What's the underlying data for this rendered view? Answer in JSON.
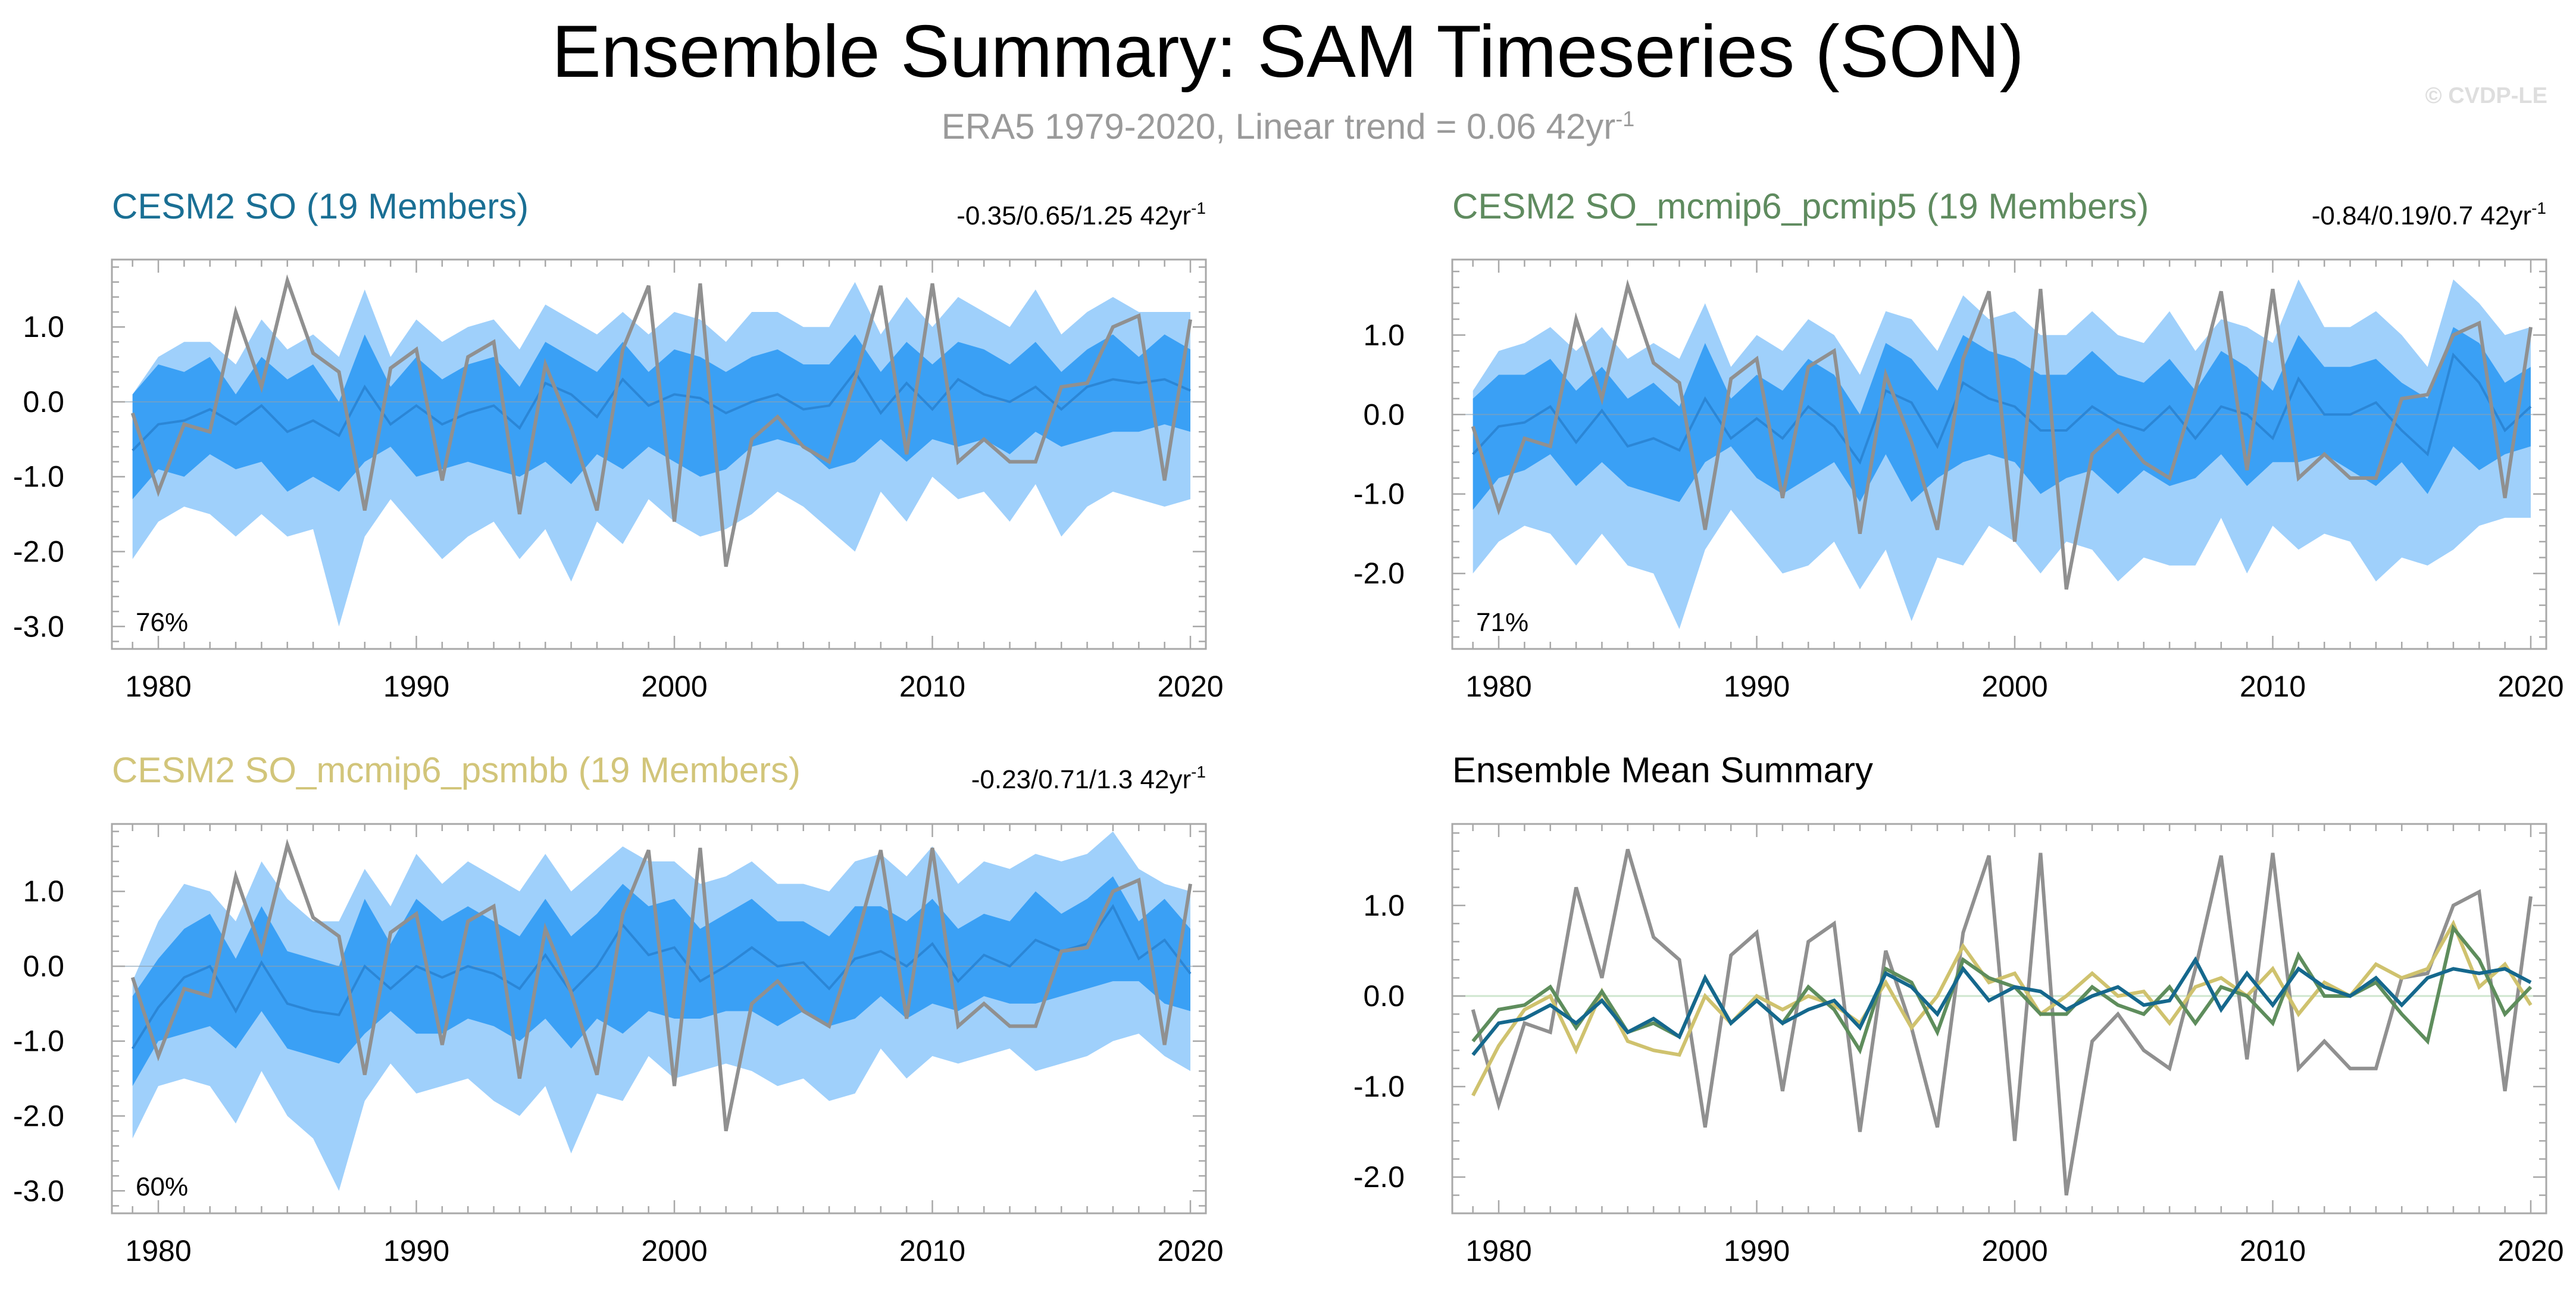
{
  "title": "Ensemble Summary: SAM Timeseries (SON)",
  "subtitle": {
    "text": "ERA5 1979-2020, Linear trend = 0.06 42yr",
    "exp": "-1"
  },
  "watermark": "© CVDP-LE",
  "colors": {
    "obs": "#909090",
    "band_outer": "#9fd0fb",
    "band_inner": "#3aa0f5",
    "mean_line": "#2b86d6",
    "zero_line": "#cfe6cf"
  },
  "chart_data": [
    {
      "type": "area",
      "id": "p1",
      "title": "CESM2 SO (19 Members)",
      "title_color": "#1a6f94",
      "trend": "-0.35/0.65/1.25 42yr",
      "trend_exp": "-1",
      "pct": "76%",
      "xlim": [
        1978.2,
        2020.6
      ],
      "ylim": [
        -3.3,
        1.9
      ],
      "xticks": [
        1980,
        1990,
        2000,
        2010,
        2020
      ],
      "yticks": [
        1.0,
        0.0,
        -1.0,
        -2.0,
        -3.0
      ],
      "yticklabels": [
        "1.0",
        "0.0",
        "-1.0",
        "-2.0",
        "-3.0"
      ],
      "x": [
        1979,
        1980,
        1981,
        1982,
        1983,
        1984,
        1985,
        1986,
        1987,
        1988,
        1989,
        1990,
        1991,
        1992,
        1993,
        1994,
        1995,
        1996,
        1997,
        1998,
        1999,
        2000,
        2001,
        2002,
        2003,
        2004,
        2005,
        2006,
        2007,
        2008,
        2009,
        2010,
        2011,
        2012,
        2013,
        2014,
        2015,
        2016,
        2017,
        2018,
        2019,
        2020
      ],
      "p10": [
        -2.1,
        -1.6,
        -1.4,
        -1.5,
        -1.8,
        -1.5,
        -1.8,
        -1.7,
        -3.0,
        -1.8,
        -1.3,
        -1.7,
        -2.1,
        -1.8,
        -1.6,
        -2.1,
        -1.7,
        -2.4,
        -1.6,
        -1.9,
        -1.3,
        -1.6,
        -1.8,
        -1.7,
        -1.5,
        -1.2,
        -1.4,
        -1.7,
        -2.0,
        -1.2,
        -1.6,
        -1.0,
        -1.3,
        -1.2,
        -1.6,
        -1.1,
        -1.8,
        -1.4,
        -1.2,
        -1.3,
        -1.4,
        -1.3
      ],
      "p25": [
        -1.3,
        -0.9,
        -1.0,
        -0.7,
        -0.9,
        -0.8,
        -1.2,
        -1.0,
        -1.2,
        -0.8,
        -0.6,
        -1.0,
        -0.9,
        -0.8,
        -0.9,
        -1.0,
        -0.8,
        -1.1,
        -0.7,
        -0.9,
        -0.6,
        -0.8,
        -1.0,
        -0.9,
        -0.6,
        -0.5,
        -0.6,
        -0.9,
        -0.8,
        -0.5,
        -0.8,
        -0.5,
        -0.6,
        -0.5,
        -0.7,
        -0.4,
        -0.6,
        -0.5,
        -0.4,
        -0.4,
        -0.3,
        -0.4
      ],
      "mean": [
        -0.65,
        -0.3,
        -0.25,
        -0.1,
        -0.3,
        -0.05,
        -0.4,
        -0.25,
        -0.45,
        0.2,
        -0.3,
        -0.05,
        -0.3,
        -0.15,
        -0.05,
        -0.35,
        0.25,
        0.1,
        -0.2,
        0.3,
        -0.05,
        0.1,
        0.05,
        -0.15,
        0.0,
        0.1,
        -0.1,
        -0.05,
        0.4,
        -0.15,
        0.25,
        -0.1,
        0.3,
        0.1,
        0.0,
        0.2,
        -0.1,
        0.2,
        0.3,
        0.25,
        0.3,
        0.15
      ],
      "p75": [
        0.1,
        0.5,
        0.4,
        0.6,
        0.1,
        0.6,
        0.3,
        0.5,
        0.0,
        0.9,
        0.2,
        0.6,
        0.3,
        0.5,
        0.6,
        0.2,
        0.8,
        0.6,
        0.4,
        0.8,
        0.4,
        0.7,
        0.6,
        0.4,
        0.6,
        0.7,
        0.5,
        0.5,
        0.9,
        0.4,
        0.8,
        0.5,
        0.8,
        0.7,
        0.5,
        0.8,
        0.4,
        0.7,
        0.9,
        0.6,
        0.9,
        0.7
      ],
      "p90": [
        0.1,
        0.6,
        0.8,
        0.8,
        0.5,
        1.1,
        0.7,
        0.9,
        0.6,
        1.5,
        0.6,
        1.1,
        0.8,
        1.0,
        1.1,
        0.7,
        1.3,
        1.1,
        0.9,
        1.2,
        0.9,
        1.2,
        1.1,
        0.8,
        1.2,
        1.2,
        1.0,
        1.0,
        1.6,
        0.9,
        1.4,
        1.0,
        1.4,
        1.2,
        1.0,
        1.5,
        0.9,
        1.2,
        1.4,
        1.2,
        1.2,
        1.2
      ],
      "obs": [
        -0.15,
        -1.2,
        -0.3,
        -0.4,
        1.2,
        0.2,
        1.62,
        0.65,
        0.4,
        -1.45,
        0.45,
        0.7,
        -1.05,
        0.6,
        0.8,
        -1.5,
        0.5,
        -0.35,
        -1.45,
        0.7,
        1.55,
        -1.6,
        1.58,
        -2.2,
        -0.5,
        -0.2,
        -0.6,
        -0.8,
        0.3,
        1.55,
        -0.7,
        1.58,
        -0.8,
        -0.5,
        -0.8,
        -0.8,
        0.2,
        0.25,
        1.0,
        1.15,
        -1.05,
        1.1
      ]
    },
    {
      "type": "area",
      "id": "p2",
      "title": "CESM2 SO_mcmip6_pcmip5 (19 Members)",
      "title_color": "#5f8b5f",
      "trend": "-0.84/0.19/0.7 42yr",
      "trend_exp": "-1",
      "pct": "71%",
      "xlim": [
        1978.2,
        2020.6
      ],
      "ylim": [
        -2.95,
        1.95
      ],
      "xticks": [
        1980,
        1990,
        2000,
        2010,
        2020
      ],
      "yticks": [
        1.0,
        0.0,
        -1.0,
        -2.0
      ],
      "yticklabels": [
        "1.0",
        "0.0",
        "-1.0",
        "-2.0"
      ],
      "x": [
        1979,
        1980,
        1981,
        1982,
        1983,
        1984,
        1985,
        1986,
        1987,
        1988,
        1989,
        1990,
        1991,
        1992,
        1993,
        1994,
        1995,
        1996,
        1997,
        1998,
        1999,
        2000,
        2001,
        2002,
        2003,
        2004,
        2005,
        2006,
        2007,
        2008,
        2009,
        2010,
        2011,
        2012,
        2013,
        2014,
        2015,
        2016,
        2017,
        2018,
        2019,
        2020
      ],
      "p10": [
        -2.0,
        -1.6,
        -1.4,
        -1.5,
        -1.9,
        -1.5,
        -1.9,
        -2.0,
        -2.7,
        -1.7,
        -1.2,
        -1.6,
        -2.0,
        -1.9,
        -1.6,
        -2.2,
        -1.7,
        -2.6,
        -1.8,
        -1.9,
        -1.4,
        -1.6,
        -2.0,
        -1.6,
        -1.7,
        -2.1,
        -1.8,
        -1.9,
        -1.9,
        -1.3,
        -2.0,
        -1.4,
        -1.7,
        -1.5,
        -1.6,
        -2.1,
        -1.8,
        -1.9,
        -1.7,
        -1.4,
        -1.3,
        -1.3
      ],
      "p25": [
        -1.2,
        -0.8,
        -0.7,
        -0.5,
        -0.9,
        -0.6,
        -0.9,
        -1.0,
        -1.1,
        -0.6,
        -0.4,
        -0.8,
        -1.0,
        -0.8,
        -0.6,
        -1.1,
        -0.5,
        -1.1,
        -0.8,
        -0.6,
        -0.5,
        -0.6,
        -1.0,
        -0.8,
        -0.7,
        -1.0,
        -0.7,
        -0.9,
        -0.8,
        -0.5,
        -0.9,
        -0.6,
        -0.6,
        -0.5,
        -0.7,
        -0.9,
        -0.6,
        -1.0,
        -0.4,
        -0.7,
        -0.5,
        -0.4
      ],
      "mean": [
        -0.5,
        -0.15,
        -0.1,
        0.1,
        -0.35,
        0.05,
        -0.4,
        -0.3,
        -0.45,
        0.2,
        -0.3,
        -0.05,
        -0.3,
        0.1,
        -0.15,
        -0.6,
        0.3,
        0.15,
        -0.4,
        0.4,
        0.2,
        0.1,
        -0.2,
        -0.2,
        0.1,
        -0.1,
        -0.2,
        0.1,
        -0.3,
        0.1,
        0.0,
        -0.3,
        0.45,
        0.0,
        0.0,
        0.15,
        -0.2,
        -0.5,
        0.75,
        0.4,
        -0.2,
        0.1
      ],
      "p75": [
        0.2,
        0.5,
        0.5,
        0.7,
        0.3,
        0.6,
        0.2,
        0.4,
        0.1,
        0.9,
        0.2,
        0.5,
        0.3,
        0.7,
        0.5,
        0.0,
        0.9,
        0.7,
        0.3,
        1.0,
        0.8,
        0.7,
        0.5,
        0.5,
        0.8,
        0.5,
        0.4,
        0.7,
        0.3,
        0.8,
        0.6,
        0.3,
        1.0,
        0.6,
        0.6,
        0.7,
        0.4,
        0.2,
        1.1,
        0.9,
        0.4,
        0.6
      ],
      "p90": [
        0.3,
        0.8,
        0.9,
        1.1,
        0.8,
        1.1,
        0.7,
        0.9,
        0.7,
        1.4,
        0.6,
        1.0,
        0.8,
        1.2,
        1.0,
        0.5,
        1.3,
        1.2,
        0.8,
        1.5,
        1.2,
        1.3,
        1.0,
        1.0,
        1.3,
        1.0,
        0.9,
        1.3,
        0.8,
        1.2,
        1.1,
        0.9,
        1.7,
        1.1,
        1.1,
        1.3,
        1.0,
        0.6,
        1.7,
        1.4,
        1.0,
        1.1
      ],
      "obs": [
        -0.15,
        -1.2,
        -0.3,
        -0.4,
        1.2,
        0.2,
        1.62,
        0.65,
        0.4,
        -1.45,
        0.45,
        0.7,
        -1.05,
        0.6,
        0.8,
        -1.5,
        0.5,
        -0.35,
        -1.45,
        0.7,
        1.55,
        -1.6,
        1.58,
        -2.2,
        -0.5,
        -0.2,
        -0.6,
        -0.8,
        0.3,
        1.55,
        -0.7,
        1.58,
        -0.8,
        -0.5,
        -0.8,
        -0.8,
        0.2,
        0.25,
        1.0,
        1.15,
        -1.05,
        1.1
      ]
    },
    {
      "type": "area",
      "id": "p3",
      "title": "CESM2 SO_mcmip6_psmbb (19 Members)",
      "title_color": "#d2c57a",
      "trend": "-0.23/0.71/1.3 42yr",
      "trend_exp": "-1",
      "pct": "60%",
      "xlim": [
        1978.2,
        2020.6
      ],
      "ylim": [
        -3.3,
        1.9
      ],
      "xticks": [
        1980,
        1990,
        2000,
        2010,
        2020
      ],
      "yticks": [
        1.0,
        0.0,
        -1.0,
        -2.0,
        -3.0
      ],
      "yticklabels": [
        "1.0",
        "0.0",
        "-1.0",
        "-2.0",
        "-3.0"
      ],
      "x": [
        1979,
        1980,
        1981,
        1982,
        1983,
        1984,
        1985,
        1986,
        1987,
        1988,
        1989,
        1990,
        1991,
        1992,
        1993,
        1994,
        1995,
        1996,
        1997,
        1998,
        1999,
        2000,
        2001,
        2002,
        2003,
        2004,
        2005,
        2006,
        2007,
        2008,
        2009,
        2010,
        2011,
        2012,
        2013,
        2014,
        2015,
        2016,
        2017,
        2018,
        2019,
        2020
      ],
      "p10": [
        -2.3,
        -1.6,
        -1.5,
        -1.6,
        -2.1,
        -1.4,
        -2.0,
        -2.3,
        -3.0,
        -1.8,
        -1.3,
        -1.7,
        -1.6,
        -1.5,
        -1.8,
        -2.0,
        -1.6,
        -2.5,
        -1.7,
        -1.8,
        -1.2,
        -1.5,
        -1.4,
        -1.3,
        -1.4,
        -1.6,
        -1.5,
        -1.8,
        -1.7,
        -1.1,
        -1.5,
        -1.2,
        -1.3,
        -1.2,
        -1.1,
        -1.4,
        -1.3,
        -1.2,
        -1.0,
        -0.9,
        -1.2,
        -1.4
      ],
      "p25": [
        -1.6,
        -1.0,
        -0.9,
        -0.8,
        -1.1,
        -0.6,
        -1.1,
        -1.2,
        -1.3,
        -0.9,
        -0.6,
        -0.9,
        -0.9,
        -0.7,
        -0.8,
        -1.0,
        -0.7,
        -1.1,
        -0.7,
        -0.9,
        -0.6,
        -0.7,
        -0.7,
        -0.6,
        -0.6,
        -0.8,
        -0.6,
        -0.8,
        -0.7,
        -0.4,
        -0.7,
        -0.5,
        -0.6,
        -0.4,
        -0.5,
        -0.5,
        -0.4,
        -0.3,
        -0.2,
        -0.2,
        -0.5,
        -0.6
      ],
      "mean": [
        -1.1,
        -0.55,
        -0.15,
        0.0,
        -0.6,
        0.05,
        -0.5,
        -0.6,
        -0.65,
        0.0,
        -0.3,
        0.0,
        -0.15,
        0.0,
        -0.1,
        -0.3,
        0.15,
        -0.35,
        0.0,
        0.55,
        0.15,
        0.25,
        -0.2,
        0.0,
        0.25,
        0.0,
        0.05,
        -0.3,
        0.1,
        0.2,
        0.0,
        0.3,
        -0.2,
        0.15,
        0.0,
        0.35,
        0.2,
        0.3,
        0.8,
        0.1,
        0.35,
        -0.1
      ],
      "p75": [
        -0.4,
        0.1,
        0.5,
        0.7,
        0.1,
        0.8,
        0.2,
        0.1,
        0.0,
        0.9,
        0.3,
        0.9,
        0.6,
        0.8,
        0.6,
        0.4,
        0.9,
        0.4,
        0.7,
        1.1,
        0.8,
        0.9,
        0.5,
        0.7,
        0.9,
        0.6,
        0.6,
        0.4,
        0.8,
        0.8,
        0.6,
        0.9,
        0.5,
        0.7,
        0.6,
        1.0,
        0.7,
        0.9,
        1.2,
        0.6,
        0.9,
        0.5
      ],
      "p90": [
        -0.2,
        0.6,
        1.1,
        1.0,
        0.6,
        1.4,
        0.9,
        0.6,
        0.6,
        1.3,
        0.8,
        1.5,
        1.1,
        1.4,
        1.2,
        1.0,
        1.5,
        1.0,
        1.3,
        1.6,
        1.4,
        1.4,
        1.1,
        1.2,
        1.4,
        1.1,
        1.1,
        1.0,
        1.4,
        1.5,
        1.2,
        1.6,
        1.1,
        1.4,
        1.3,
        1.5,
        1.4,
        1.5,
        1.8,
        1.3,
        1.1,
        1.0
      ],
      "obs": [
        -0.15,
        -1.2,
        -0.3,
        -0.4,
        1.2,
        0.2,
        1.62,
        0.65,
        0.4,
        -1.45,
        0.45,
        0.7,
        -1.05,
        0.6,
        0.8,
        -1.5,
        0.5,
        -0.35,
        -1.45,
        0.7,
        1.55,
        -1.6,
        1.58,
        -2.2,
        -0.5,
        -0.2,
        -0.6,
        -0.8,
        0.3,
        1.55,
        -0.7,
        1.58,
        -0.8,
        -0.5,
        -0.8,
        -0.8,
        0.2,
        0.25,
        1.0,
        1.15,
        -1.05,
        1.1
      ]
    },
    {
      "type": "line",
      "id": "p4",
      "title": "Ensemble Mean Summary",
      "title_color": "#000000",
      "xlim": [
        1978.2,
        2020.6
      ],
      "ylim": [
        -2.4,
        1.9
      ],
      "xticks": [
        1980,
        1990,
        2000,
        2010,
        2020
      ],
      "yticks": [
        1.0,
        0.0,
        -1.0,
        -2.0
      ],
      "yticklabels": [
        "1.0",
        "0.0",
        "-1.0",
        "-2.0"
      ],
      "x": [
        1979,
        1980,
        1981,
        1982,
        1983,
        1984,
        1985,
        1986,
        1987,
        1988,
        1989,
        1990,
        1991,
        1992,
        1993,
        1994,
        1995,
        1996,
        1997,
        1998,
        1999,
        2000,
        2001,
        2002,
        2003,
        2004,
        2005,
        2006,
        2007,
        2008,
        2009,
        2010,
        2011,
        2012,
        2013,
        2014,
        2015,
        2016,
        2017,
        2018,
        2019,
        2020
      ],
      "series": [
        {
          "name": "ERA5",
          "color": "#909090",
          "values": [
            -0.15,
            -1.2,
            -0.3,
            -0.4,
            1.2,
            0.2,
            1.62,
            0.65,
            0.4,
            -1.45,
            0.45,
            0.7,
            -1.05,
            0.6,
            0.8,
            -1.5,
            0.5,
            -0.35,
            -1.45,
            0.7,
            1.55,
            -1.6,
            1.58,
            -2.2,
            -0.5,
            -0.2,
            -0.6,
            -0.8,
            0.3,
            1.55,
            -0.7,
            1.58,
            -0.8,
            -0.5,
            -0.8,
            -0.8,
            0.2,
            0.25,
            1.0,
            1.15,
            -1.05,
            1.1
          ]
        },
        {
          "name": "CESM2 SO_mcmip6_psmbb",
          "color": "#cfc26e",
          "values": [
            -1.1,
            -0.55,
            -0.15,
            0.0,
            -0.6,
            0.05,
            -0.5,
            -0.6,
            -0.65,
            0.0,
            -0.3,
            0.0,
            -0.15,
            0.0,
            -0.1,
            -0.3,
            0.15,
            -0.35,
            0.0,
            0.55,
            0.15,
            0.25,
            -0.2,
            0.0,
            0.25,
            0.0,
            0.05,
            -0.3,
            0.1,
            0.2,
            0.0,
            0.3,
            -0.2,
            0.15,
            0.0,
            0.35,
            0.2,
            0.3,
            0.8,
            0.1,
            0.35,
            -0.1
          ]
        },
        {
          "name": "CESM2 SO_mcmip6_pcmip5",
          "color": "#5e8d5c",
          "values": [
            -0.5,
            -0.15,
            -0.1,
            0.1,
            -0.35,
            0.05,
            -0.4,
            -0.3,
            -0.45,
            0.2,
            -0.3,
            -0.05,
            -0.3,
            0.1,
            -0.15,
            -0.6,
            0.3,
            0.15,
            -0.4,
            0.4,
            0.2,
            0.1,
            -0.2,
            -0.2,
            0.1,
            -0.1,
            -0.2,
            0.1,
            -0.3,
            0.1,
            0.0,
            -0.3,
            0.45,
            0.0,
            0.0,
            0.15,
            -0.2,
            -0.5,
            0.75,
            0.4,
            -0.2,
            0.1
          ]
        },
        {
          "name": "CESM2 SO",
          "color": "#15688d",
          "values": [
            -0.65,
            -0.3,
            -0.25,
            -0.1,
            -0.3,
            -0.05,
            -0.4,
            -0.25,
            -0.45,
            0.2,
            -0.3,
            -0.05,
            -0.3,
            -0.15,
            -0.05,
            -0.35,
            0.25,
            0.1,
            -0.2,
            0.3,
            -0.05,
            0.1,
            0.05,
            -0.15,
            0.0,
            0.1,
            -0.1,
            -0.05,
            0.4,
            -0.15,
            0.25,
            -0.1,
            0.3,
            0.1,
            0.0,
            0.2,
            -0.1,
            0.2,
            0.3,
            0.25,
            0.3,
            0.15
          ]
        }
      ]
    }
  ]
}
